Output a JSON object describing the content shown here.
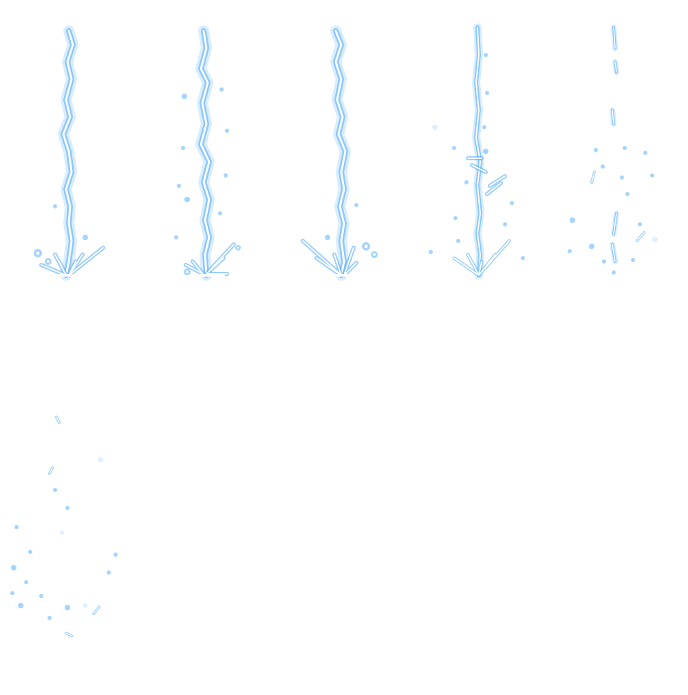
{
  "sprite_sheet": {
    "frames": [
      {
        "index": 1
      },
      {
        "index": 2
      },
      {
        "index": 3
      },
      {
        "index": 4
      },
      {
        "index": 5
      },
      {
        "index": 6
      }
    ],
    "colors": {
      "glow": "#4aa8ff",
      "glow_soft": "#a8d6ff",
      "core": "#ffffff",
      "background": "#ffffff"
    },
    "icons": [
      "lightning-bolt-icon",
      "spark-icon"
    ]
  }
}
